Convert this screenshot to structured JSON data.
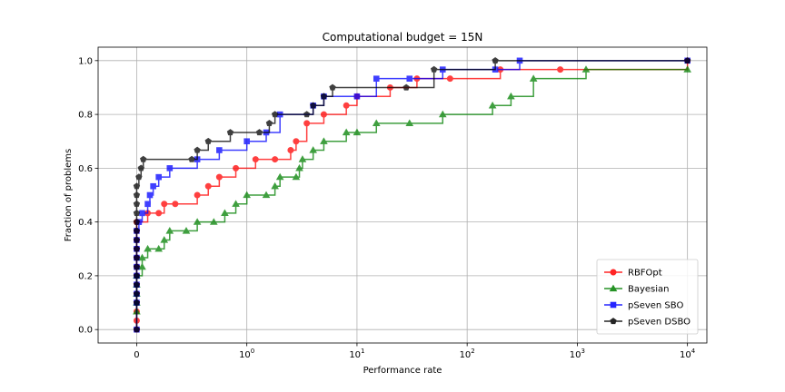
{
  "chart_data": {
    "type": "line",
    "title": "Computational budget = 15N",
    "xlabel": "Performance rate",
    "ylabel": "Fraction of problems",
    "x_scale": "symlog",
    "xlim": [
      -0.35,
      15000
    ],
    "ylim": [
      -0.05,
      1.05
    ],
    "x_ticks": [
      {
        "value": 0,
        "label": "0"
      },
      {
        "value": 1,
        "label": "10",
        "sup": "0"
      },
      {
        "value": 10,
        "label": "10",
        "sup": "1"
      },
      {
        "value": 100,
        "label": "10",
        "sup": "2"
      },
      {
        "value": 1000,
        "label": "10",
        "sup": "3"
      },
      {
        "value": 10000,
        "label": "10",
        "sup": "4"
      }
    ],
    "y_ticks": [
      {
        "value": 0.0,
        "label": "0.0"
      },
      {
        "value": 0.2,
        "label": "0.2"
      },
      {
        "value": 0.4,
        "label": "0.4"
      },
      {
        "value": 0.6,
        "label": "0.6"
      },
      {
        "value": 0.8,
        "label": "0.8"
      },
      {
        "value": 1.0,
        "label": "1.0"
      }
    ],
    "grid": true,
    "legend_position": "lower-right",
    "series": [
      {
        "name": "RBFOpt",
        "color": "#ff0000",
        "marker": "circle",
        "points": [
          [
            0,
            0.0
          ],
          [
            0,
            0.033
          ],
          [
            0,
            0.067
          ],
          [
            0,
            0.1
          ],
          [
            0,
            0.133
          ],
          [
            0,
            0.167
          ],
          [
            0,
            0.2
          ],
          [
            0,
            0.233
          ],
          [
            0,
            0.267
          ],
          [
            0,
            0.3
          ],
          [
            0,
            0.333
          ],
          [
            0,
            0.367
          ],
          [
            0,
            0.4
          ],
          [
            0.1,
            0.433
          ],
          [
            0.2,
            0.433
          ],
          [
            0.25,
            0.467
          ],
          [
            0.35,
            0.467
          ],
          [
            0.55,
            0.5
          ],
          [
            0.65,
            0.533
          ],
          [
            0.75,
            0.567
          ],
          [
            0.9,
            0.6
          ],
          [
            1.2,
            0.633
          ],
          [
            1.8,
            0.633
          ],
          [
            2.5,
            0.667
          ],
          [
            2.8,
            0.7
          ],
          [
            3.5,
            0.767
          ],
          [
            5,
            0.8
          ],
          [
            8,
            0.833
          ],
          [
            10,
            0.867
          ],
          [
            20,
            0.9
          ],
          [
            35,
            0.933
          ],
          [
            70,
            0.933
          ],
          [
            200,
            0.967
          ],
          [
            700,
            0.967
          ],
          [
            10000,
            1.0
          ]
        ]
      },
      {
        "name": "Bayesian",
        "color": "#008000",
        "marker": "triangle",
        "points": [
          [
            0,
            0.067
          ],
          [
            0,
            0.1
          ],
          [
            0,
            0.133
          ],
          [
            0,
            0.167
          ],
          [
            0,
            0.2
          ],
          [
            0.05,
            0.233
          ],
          [
            0.05,
            0.267
          ],
          [
            0.1,
            0.3
          ],
          [
            0.2,
            0.3
          ],
          [
            0.25,
            0.333
          ],
          [
            0.3,
            0.367
          ],
          [
            0.45,
            0.367
          ],
          [
            0.55,
            0.4
          ],
          [
            0.7,
            0.4
          ],
          [
            0.8,
            0.433
          ],
          [
            0.9,
            0.467
          ],
          [
            1.0,
            0.5
          ],
          [
            1.5,
            0.5
          ],
          [
            1.8,
            0.533
          ],
          [
            2.0,
            0.567
          ],
          [
            2.8,
            0.567
          ],
          [
            3,
            0.6
          ],
          [
            3.2,
            0.633
          ],
          [
            4,
            0.667
          ],
          [
            5,
            0.7
          ],
          [
            8,
            0.733
          ],
          [
            10,
            0.733
          ],
          [
            15,
            0.767
          ],
          [
            30,
            0.767
          ],
          [
            60,
            0.8
          ],
          [
            170,
            0.833
          ],
          [
            250,
            0.867
          ],
          [
            400,
            0.933
          ],
          [
            1200,
            0.967
          ],
          [
            10000,
            0.967
          ]
        ]
      },
      {
        "name": "pSeven SBO",
        "color": "#0000ff",
        "marker": "square",
        "points": [
          [
            0,
            0.0
          ],
          [
            0,
            0.1
          ],
          [
            0,
            0.133
          ],
          [
            0,
            0.167
          ],
          [
            0,
            0.2
          ],
          [
            0,
            0.233
          ],
          [
            0,
            0.267
          ],
          [
            0,
            0.3
          ],
          [
            0,
            0.333
          ],
          [
            0,
            0.367
          ],
          [
            0.02,
            0.4
          ],
          [
            0.05,
            0.433
          ],
          [
            0.1,
            0.467
          ],
          [
            0.12,
            0.5
          ],
          [
            0.15,
            0.533
          ],
          [
            0.2,
            0.567
          ],
          [
            0.3,
            0.6
          ],
          [
            0.55,
            0.633
          ],
          [
            0.75,
            0.667
          ],
          [
            1,
            0.7
          ],
          [
            1.5,
            0.733
          ],
          [
            2,
            0.8
          ],
          [
            4,
            0.833
          ],
          [
            5,
            0.867
          ],
          [
            10,
            0.867
          ],
          [
            15,
            0.933
          ],
          [
            30,
            0.933
          ],
          [
            60,
            0.967
          ],
          [
            180,
            0.967
          ],
          [
            300,
            1.0
          ],
          [
            10000,
            1.0
          ]
        ]
      },
      {
        "name": "pSeven DSBO",
        "color": "#000000",
        "marker": "pentagon",
        "points": [
          [
            0,
            0.0
          ],
          [
            0,
            0.1
          ],
          [
            0,
            0.133
          ],
          [
            0,
            0.167
          ],
          [
            0,
            0.2
          ],
          [
            0,
            0.233
          ],
          [
            0,
            0.267
          ],
          [
            0,
            0.3
          ],
          [
            0,
            0.333
          ],
          [
            0,
            0.367
          ],
          [
            0,
            0.4
          ],
          [
            0,
            0.433
          ],
          [
            0,
            0.467
          ],
          [
            0,
            0.5
          ],
          [
            0,
            0.533
          ],
          [
            0.02,
            0.567
          ],
          [
            0.04,
            0.6
          ],
          [
            0.06,
            0.633
          ],
          [
            0.5,
            0.633
          ],
          [
            0.55,
            0.667
          ],
          [
            0.65,
            0.7
          ],
          [
            0.85,
            0.733
          ],
          [
            1.3,
            0.733
          ],
          [
            1.6,
            0.767
          ],
          [
            1.8,
            0.8
          ],
          [
            3.5,
            0.8
          ],
          [
            4,
            0.833
          ],
          [
            5,
            0.867
          ],
          [
            6,
            0.9
          ],
          [
            28,
            0.9
          ],
          [
            50,
            0.967
          ],
          [
            180,
            1.0
          ],
          [
            10000,
            1.0
          ]
        ]
      }
    ]
  }
}
